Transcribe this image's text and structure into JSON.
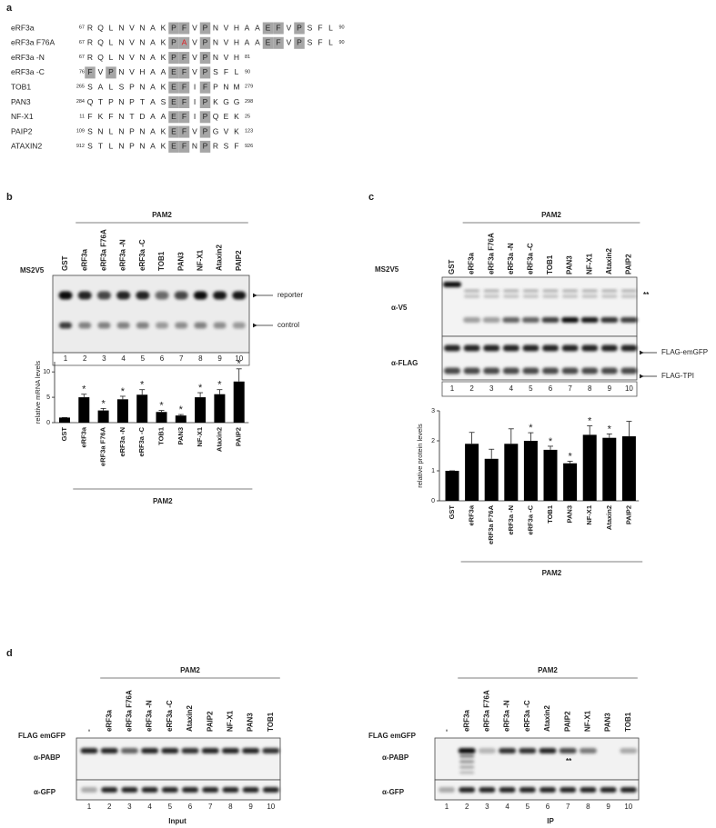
{
  "panel_a": {
    "label": "a",
    "rows": [
      {
        "name": "eRF3a",
        "start": 67,
        "residues": "RQLNVNAKPFVPNVHAAEFVPSFL",
        "end": 90,
        "boxed": [
          8,
          9,
          11,
          17,
          18,
          20
        ]
      },
      {
        "name": "eRF3a F76A",
        "start": 67,
        "residues": "RQLNVNAKPAVPNVHAAEFVPSFL",
        "end": 90,
        "boxed": [
          8,
          9,
          11,
          17,
          18,
          20
        ],
        "mutated": [
          9
        ]
      },
      {
        "name": "eRF3a -N",
        "start": 67,
        "residues": "RQLNVNAKPFVPNVH",
        "end": 81,
        "boxed": [
          8,
          9,
          11
        ]
      },
      {
        "name": "eRF3a -C",
        "start": 76,
        "residues": "FVPNVHAAEFVPSFL",
        "end": 90,
        "boxed": [
          0,
          2,
          8,
          9,
          11
        ]
      },
      {
        "name": "TOB1",
        "start": 265,
        "residues": "SALSPNAKEFIFPNM",
        "end": 279,
        "boxed": [
          8,
          9,
          11
        ]
      },
      {
        "name": "PAN3",
        "start": 284,
        "residues": "QTPNPTASEFIPKGG",
        "end": 298,
        "boxed": [
          8,
          9,
          11
        ]
      },
      {
        "name": "NF-X1",
        "start": 11,
        "residues": "FKFNTDAAEFIPQEK",
        "end": 25,
        "boxed": [
          8,
          9,
          11
        ]
      },
      {
        "name": "PAIP2",
        "start": 109,
        "residues": "SNLNPNAKEFVPGVK",
        "end": 123,
        "boxed": [
          8,
          9,
          11
        ]
      },
      {
        "name": "ATAXIN2",
        "start": 912,
        "residues": "STLNPNAKEFNPRSF",
        "end": 926,
        "boxed": [
          8,
          9,
          11
        ]
      }
    ]
  },
  "blot_b": {
    "label": "b",
    "group": "PAM2",
    "probe": "MS2V5",
    "lanes": [
      "GST",
      "eRF3a",
      "eRF3a F76A",
      "eRF3a -N",
      "eRF3a -C",
      "TOB1",
      "PAN3",
      "NF-X1",
      "Ataxin2",
      "PAIP2"
    ],
    "bands": [
      "reporter",
      "control"
    ],
    "lane_numbers": [
      1,
      2,
      3,
      4,
      5,
      6,
      7,
      8,
      9,
      10
    ]
  },
  "blot_c": {
    "label": "c",
    "group": "PAM2",
    "probe": "MS2V5",
    "lanes": [
      "GST",
      "eRF3a",
      "eRF3a F76A",
      "eRF3a -N",
      "eRF3a -C",
      "TOB1",
      "PAN3",
      "NF-X1",
      "Ataxin2",
      "PAIP2"
    ],
    "antibodies": [
      "α-V5",
      "α-FLAG"
    ],
    "bands": [
      "FLAG-emGFP",
      "FLAG-TPI"
    ],
    "note": "**",
    "lane_numbers": [
      1,
      2,
      3,
      4,
      5,
      6,
      7,
      8,
      9,
      10
    ]
  },
  "chart_data": [
    {
      "type": "bar",
      "ylabel": "relative mRNA levels",
      "group": "PAM2",
      "color": "#000000",
      "categories": [
        "GST",
        "eRF3a",
        "eRF3a F76A",
        "eRF3a -N",
        "eRF3a -C",
        "TOB1",
        "PAN3",
        "NF-X1",
        "Ataxin2",
        "PAIP2"
      ],
      "values": [
        1,
        5,
        2.4,
        4.6,
        5.5,
        2.1,
        1.4,
        5,
        5.6,
        8.1
      ],
      "errors": [
        0,
        0.6,
        0.4,
        0.6,
        1,
        0.3,
        0.2,
        0.9,
        0.9,
        2.5
      ],
      "significance": [
        null,
        "*",
        "*",
        "*",
        "*",
        "*",
        "*",
        "*",
        "*",
        "*"
      ],
      "ylim": [
        0,
        12
      ],
      "yticks": [
        0,
        5,
        10
      ]
    },
    {
      "type": "bar",
      "ylabel": "relative protein levels",
      "group": "PAM2",
      "color": "#000000",
      "categories": [
        "GST",
        "eRF3a",
        "eRF3a F76A",
        "eRF3a -N",
        "eRF3a -C",
        "TOB1",
        "PAN3",
        "NF-X1",
        "Ataxin2",
        "PAIP2"
      ],
      "values": [
        1,
        1.9,
        1.4,
        1.9,
        2,
        1.7,
        1.25,
        2.2,
        2.1,
        2.15
      ],
      "errors": [
        0,
        0.38,
        0.32,
        0.5,
        0.27,
        0.12,
        0.07,
        0.3,
        0.13,
        0.5
      ],
      "significance": [
        null,
        null,
        null,
        null,
        "*",
        "*",
        "*",
        "*",
        "*",
        null
      ],
      "ylim": [
        0,
        3
      ],
      "yticks": [
        0,
        1,
        2,
        3
      ]
    }
  ],
  "panel_d": {
    "label": "d",
    "blots": [
      {
        "group": "PAM2",
        "bait": "FLAG emGFP",
        "lanes": [
          "-",
          "eRF3a",
          "eRF3a F76A",
          "eRF3a -N",
          "eRF3a -C",
          "Ataxin2",
          "PAIP2",
          "NF-X1",
          "PAN3",
          "TOB1"
        ],
        "antibodies": [
          "α-PABP",
          "α-GFP"
        ],
        "lane_numbers": [
          1,
          2,
          3,
          4,
          5,
          6,
          7,
          8,
          9,
          10
        ],
        "caption": "Input"
      },
      {
        "group": "PAM2",
        "bait": "FLAG emGFP",
        "lanes": [
          "-",
          "eRF3a",
          "eRF3a F76A",
          "eRF3a -N",
          "eRF3a -C",
          "Ataxin2",
          "PAIP2",
          "NF-X1",
          "PAN3",
          "TOB1"
        ],
        "antibodies": [
          "α-PABP",
          "α-GFP"
        ],
        "lane_numbers": [
          1,
          2,
          3,
          4,
          5,
          6,
          7,
          8,
          9,
          10
        ],
        "caption": "IP",
        "note": "**"
      }
    ]
  }
}
